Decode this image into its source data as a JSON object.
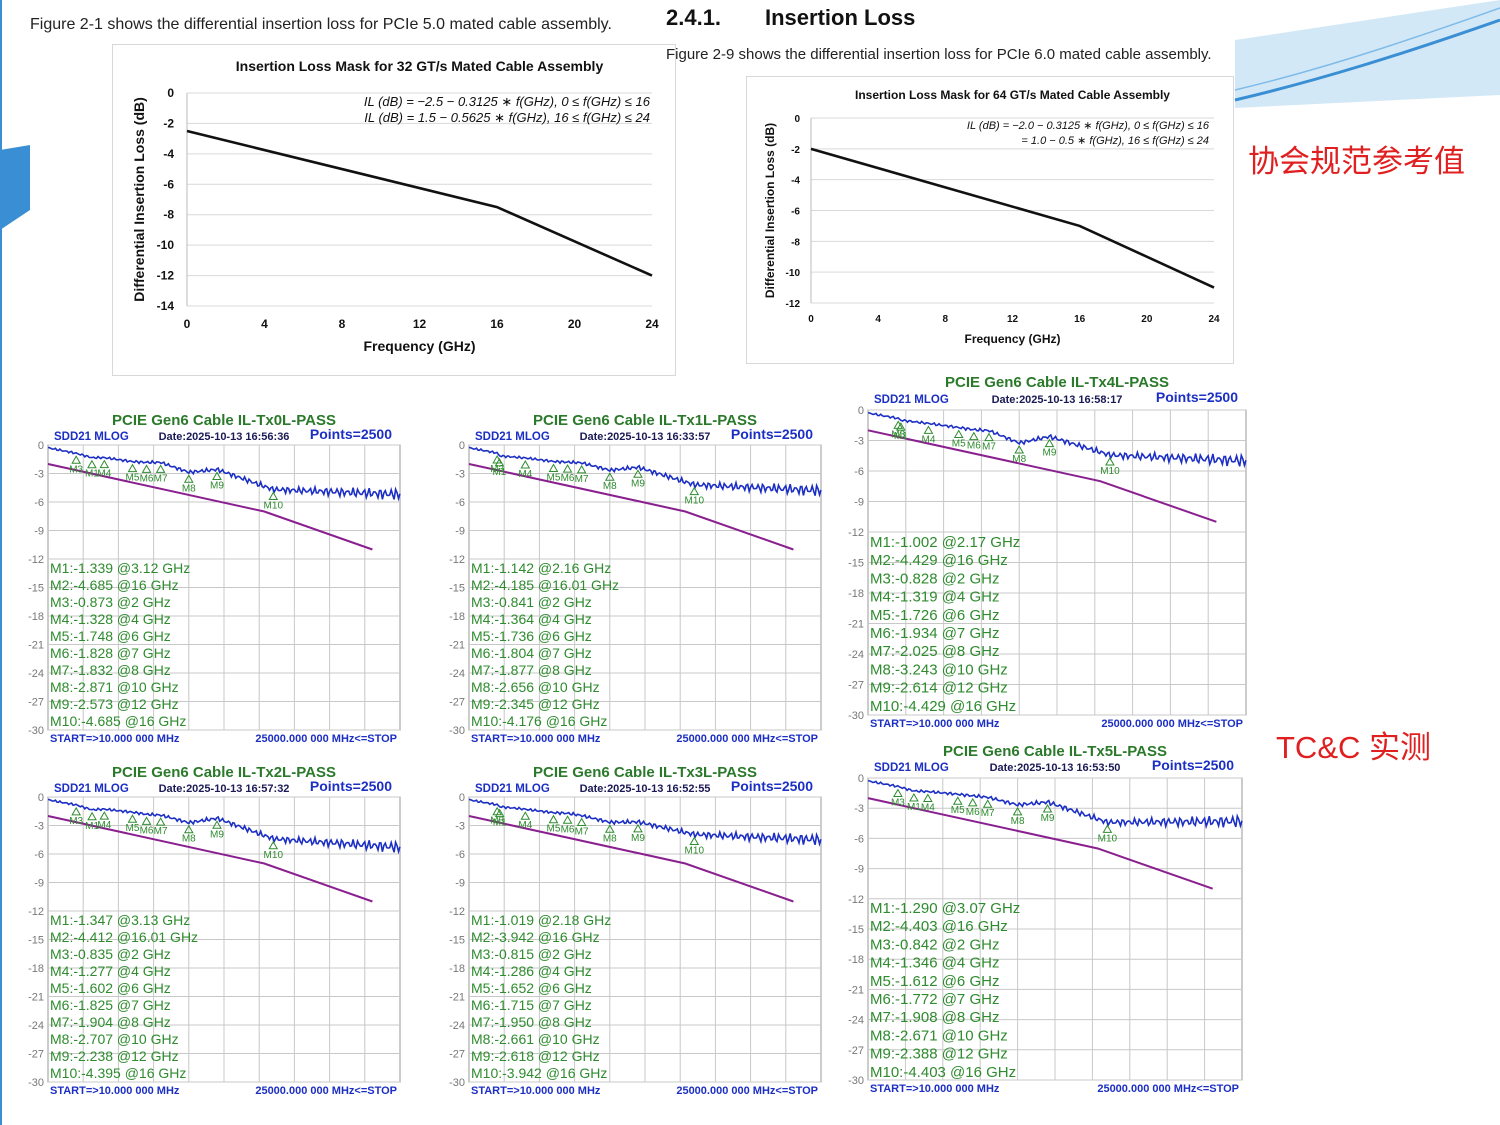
{
  "colors": {
    "accent_blue": "#3a8fd4",
    "light_blue": "#d3e8f7",
    "note_red": "#e02020",
    "mask_purple": "#8a1f8f",
    "measured_blue": "#1c2fc4",
    "marker_green": "#2e8b2e",
    "title_green": "#2b7a2b",
    "label_blue": "#1c2fc4"
  },
  "left_caption": "Figure 2-1 shows the differential insertion loss for PCIe 5.0 mated cable assembly.",
  "section": {
    "number": "2.4.1.",
    "title": "Insertion Loss"
  },
  "right_caption": "Figure 2-9 shows the differential insertion loss for PCIe 6.0 mated cable assembly.",
  "notes": {
    "spec_reference": "协会规范参考值",
    "measured": "TC&C 实测"
  },
  "chart_data": [
    {
      "type": "line",
      "title": "Insertion Loss Mask for 32 GT/s Mated Cable Assembly",
      "xlabel": "Frequency (GHz)",
      "ylabel": "Differential Insertion Loss (dB)",
      "xlim": [
        0,
        24
      ],
      "ylim": [
        -14,
        0
      ],
      "xticks": [
        "0",
        "4",
        "8",
        "12",
        "16",
        "20",
        "24"
      ],
      "yticks": [
        "0",
        "-2",
        "-4",
        "-6",
        "-8",
        "-10",
        "-12",
        "-14"
      ],
      "equations": [
        "IL (dB) = −2.5  − 0.3125 ∗ f(GHz), 0 ≤ f(GHz) ≤ 16",
        "IL (dB) =   1.5  − 0.5625 ∗ f(GHz), 16 ≤ f(GHz) ≤ 24"
      ],
      "series": [
        {
          "x": [
            0,
            16,
            24
          ],
          "y": [
            -2.5,
            -7.5,
            -12
          ]
        }
      ],
      "grid": "horizontal"
    },
    {
      "type": "line",
      "title": "Insertion Loss Mask for 64 GT/s Mated Cable Assembly",
      "xlabel": "Frequency (GHz)",
      "ylabel": "Differential Insertion Loss (dB)",
      "xlim": [
        0,
        24
      ],
      "ylim": [
        -12,
        0
      ],
      "xticks": [
        "0",
        "4",
        "8",
        "12",
        "16",
        "20",
        "24"
      ],
      "yticks": [
        "0",
        "-2",
        "-4",
        "-6",
        "-8",
        "-10",
        "-12"
      ],
      "equations": [
        "IL (dB) = −2.0 − 0.3125 ∗ f(GHz), 0 ≤ f(GHz) ≤ 16",
        "= 1.0 − 0.5 ∗ f(GHz), 16 ≤ f(GHz) ≤ 24"
      ],
      "series": [
        {
          "x": [
            0,
            16,
            24
          ],
          "y": [
            -2,
            -7,
            -11
          ]
        }
      ],
      "grid": "horizontal"
    },
    {
      "type": "line",
      "title": "PCIE Gen6 Cable IL-Tx0L-PASS",
      "header": "SDD21 MLOG",
      "date": "Date:2025-10-13 16:56:36",
      "points": "Points=2500",
      "start": "START=>10.000 000 MHz",
      "stop": "25000.000 000 MHz<=STOP",
      "ylim": [
        -30,
        0
      ],
      "yticks": [
        "0",
        "-3",
        "-6",
        "-9",
        "-12",
        "-15",
        "-18",
        "-21",
        "-24",
        "-27",
        "-30"
      ],
      "marker_lines": [
        "M1:-1.339 @3.12 GHz",
        "M2:-4.685 @16 GHz",
        "M3:-0.873 @2 GHz",
        "M4:-1.328 @4 GHz",
        "M5:-1.748 @6 GHz",
        "M6:-1.828 @7 GHz",
        "M7:-1.832 @8 GHz",
        "M8:-2.871 @10 GHz",
        "M9:-2.573 @12 GHz",
        "M10:-4.685 @16 GHz"
      ],
      "markers": [
        {
          "label": "M1",
          "f": 3.12,
          "db": -1.339
        },
        {
          "label": "M2",
          "f": 16,
          "db": -4.685
        },
        {
          "label": "M3",
          "f": 2,
          "db": -0.873
        },
        {
          "label": "M4",
          "f": 4,
          "db": -1.328
        },
        {
          "label": "M5",
          "f": 6,
          "db": -1.748
        },
        {
          "label": "M6",
          "f": 7,
          "db": -1.828
        },
        {
          "label": "M7",
          "f": 8,
          "db": -1.832
        },
        {
          "label": "M8",
          "f": 10,
          "db": -2.871
        },
        {
          "label": "M9",
          "f": 12,
          "db": -2.573
        },
        {
          "label": "M10",
          "f": 16,
          "db": -4.685
        }
      ],
      "mask": {
        "x": [
          0,
          16,
          24
        ],
        "y": [
          -2,
          -7,
          -11
        ]
      },
      "trace_end_db": -5.2
    },
    {
      "type": "line",
      "title": "PCIE Gen6 Cable IL-Tx1L-PASS",
      "header": "SDD21 MLOG",
      "date": "Date:2025-10-13 16:33:57",
      "points": "Points=2500",
      "start": "START=>10.000 000 MHz",
      "stop": "25000.000 000 MHz<=STOP",
      "ylim": [
        -30,
        0
      ],
      "yticks": [
        "0",
        "-3",
        "-6",
        "-9",
        "-12",
        "-15",
        "-18",
        "-21",
        "-24",
        "-27",
        "-30"
      ],
      "marker_lines": [
        "M1:-1.142 @2.16 GHz",
        "M2:-4.185 @16.01 GHz",
        "M3:-0.841 @2 GHz",
        "M4:-1.364 @4 GHz",
        "M5:-1.736 @6 GHz",
        "M6:-1.804 @7 GHz",
        "M7:-1.877 @8 GHz",
        "M8:-2.656 @10 GHz",
        "M9:-2.345 @12 GHz",
        "M10:-4.176 @16 GHz"
      ],
      "markers": [
        {
          "label": "M1",
          "f": 2.16,
          "db": -1.142
        },
        {
          "label": "M2",
          "f": 16.01,
          "db": -4.185
        },
        {
          "label": "M3",
          "f": 2,
          "db": -0.841
        },
        {
          "label": "M4",
          "f": 4,
          "db": -1.364
        },
        {
          "label": "M5",
          "f": 6,
          "db": -1.736
        },
        {
          "label": "M6",
          "f": 7,
          "db": -1.804
        },
        {
          "label": "M7",
          "f": 8,
          "db": -1.877
        },
        {
          "label": "M8",
          "f": 10,
          "db": -2.656
        },
        {
          "label": "M9",
          "f": 12,
          "db": -2.345
        },
        {
          "label": "M10",
          "f": 16,
          "db": -4.176
        }
      ],
      "mask": {
        "x": [
          0,
          16,
          24
        ],
        "y": [
          -2,
          -7,
          -11
        ]
      },
      "trace_end_db": -4.8
    },
    {
      "type": "line",
      "title": "PCIE Gen6 Cable IL-Tx4L-PASS",
      "header": "SDD21 MLOG",
      "date": "Date:2025-10-13 16:58:17",
      "points": "Points=2500",
      "start": "START=>10.000 000 MHz",
      "stop": "25000.000 000 MHz<=STOP",
      "ylim": [
        -30,
        0
      ],
      "yticks": [
        "0",
        "-3",
        "-6",
        "-9",
        "-12",
        "-15",
        "-18",
        "-21",
        "-24",
        "-27",
        "-30"
      ],
      "marker_lines": [
        "M1:-1.002 @2.17 GHz",
        "M2:-4.429 @16 GHz",
        "M3:-0.828 @2 GHz",
        "M4:-1.319 @4 GHz",
        "M5:-1.726 @6 GHz",
        "M6:-1.934 @7 GHz",
        "M7:-2.025 @8 GHz",
        "M8:-3.243 @10 GHz",
        "M9:-2.614 @12 GHz",
        "M10:-4.429 @16 GHz"
      ],
      "markers": [
        {
          "label": "M1",
          "f": 2.17,
          "db": -1.002
        },
        {
          "label": "M2",
          "f": 16,
          "db": -4.429
        },
        {
          "label": "M3",
          "f": 2,
          "db": -0.828
        },
        {
          "label": "M4",
          "f": 4,
          "db": -1.319
        },
        {
          "label": "M5",
          "f": 6,
          "db": -1.726
        },
        {
          "label": "M6",
          "f": 7,
          "db": -1.934
        },
        {
          "label": "M7",
          "f": 8,
          "db": -2.025
        },
        {
          "label": "M8",
          "f": 10,
          "db": -3.243
        },
        {
          "label": "M9",
          "f": 12,
          "db": -2.614
        },
        {
          "label": "M10",
          "f": 16,
          "db": -4.429
        }
      ],
      "mask": {
        "x": [
          0,
          16,
          24
        ],
        "y": [
          -2,
          -7,
          -11
        ]
      },
      "trace_end_db": -5.0
    },
    {
      "type": "line",
      "title": "PCIE Gen6 Cable IL-Tx2L-PASS",
      "header": "SDD21 MLOG",
      "date": "Date:2025-10-13 16:57:32",
      "points": "Points=2500",
      "start": "START=>10.000 000 MHz",
      "stop": "25000.000 000 MHz<=STOP",
      "ylim": [
        -30,
        0
      ],
      "yticks": [
        "0",
        "-3",
        "-6",
        "-9",
        "-12",
        "-15",
        "-18",
        "-21",
        "-24",
        "-27",
        "-30"
      ],
      "marker_lines": [
        "M1:-1.347 @3.13 GHz",
        "M2:-4.412 @16.01 GHz",
        "M3:-0.835 @2 GHz",
        "M4:-1.277 @4 GHz",
        "M5:-1.602 @6 GHz",
        "M6:-1.825 @7 GHz",
        "M7:-1.904 @8 GHz",
        "M8:-2.707 @10 GHz",
        "M9:-2.238 @12 GHz",
        "M10:-4.395 @16 GHz"
      ],
      "markers": [
        {
          "label": "M1",
          "f": 3.13,
          "db": -1.347
        },
        {
          "label": "M2",
          "f": 16.01,
          "db": -4.412
        },
        {
          "label": "M3",
          "f": 2,
          "db": -0.835
        },
        {
          "label": "M4",
          "f": 4,
          "db": -1.277
        },
        {
          "label": "M5",
          "f": 6,
          "db": -1.602
        },
        {
          "label": "M6",
          "f": 7,
          "db": -1.825
        },
        {
          "label": "M7",
          "f": 8,
          "db": -1.904
        },
        {
          "label": "M8",
          "f": 10,
          "db": -2.707
        },
        {
          "label": "M9",
          "f": 12,
          "db": -2.238
        },
        {
          "label": "M10",
          "f": 16,
          "db": -4.395
        }
      ],
      "mask": {
        "x": [
          0,
          16,
          24
        ],
        "y": [
          -2,
          -7,
          -11
        ]
      },
      "trace_end_db": -5.3
    },
    {
      "type": "line",
      "title": "PCIE Gen6 Cable IL-Tx3L-PASS",
      "header": "SDD21 MLOG",
      "date": "Date:2025-10-13 16:52:55",
      "points": "Points=2500",
      "start": "START=>10.000 000 MHz",
      "stop": "25000.000 000 MHz<=STOP",
      "ylim": [
        -30,
        0
      ],
      "yticks": [
        "0",
        "-3",
        "-6",
        "-9",
        "-12",
        "-15",
        "-18",
        "-21",
        "-24",
        "-27",
        "-30"
      ],
      "marker_lines": [
        "M1:-1.019 @2.18 GHz",
        "M2:-3.942 @16 GHz",
        "M3:-0.815 @2 GHz",
        "M4:-1.286 @4 GHz",
        "M5:-1.652 @6 GHz",
        "M6:-1.715 @7 GHz",
        "M7:-1.950 @8 GHz",
        "M8:-2.661 @10 GHz",
        "M9:-2.618 @12 GHz",
        "M10:-3.942 @16 GHz"
      ],
      "markers": [
        {
          "label": "M1",
          "f": 2.18,
          "db": -1.019
        },
        {
          "label": "M2",
          "f": 16,
          "db": -3.942
        },
        {
          "label": "M3",
          "f": 2,
          "db": -0.815
        },
        {
          "label": "M4",
          "f": 4,
          "db": -1.286
        },
        {
          "label": "M5",
          "f": 6,
          "db": -1.652
        },
        {
          "label": "M6",
          "f": 7,
          "db": -1.715
        },
        {
          "label": "M7",
          "f": 8,
          "db": -1.95
        },
        {
          "label": "M8",
          "f": 10,
          "db": -2.661
        },
        {
          "label": "M9",
          "f": 12,
          "db": -2.618
        },
        {
          "label": "M10",
          "f": 16,
          "db": -3.942
        }
      ],
      "mask": {
        "x": [
          0,
          16,
          24
        ],
        "y": [
          -2,
          -7,
          -11
        ]
      },
      "trace_end_db": -4.5
    },
    {
      "type": "line",
      "title": "PCIE Gen6 Cable IL-Tx5L-PASS",
      "header": "SDD21 MLOG",
      "date": "Date:2025-10-13 16:53:50",
      "points": "Points=2500",
      "start": "START=>10.000 000 MHz",
      "stop": "25000.000 000 MHz<=STOP",
      "ylim": [
        -30,
        0
      ],
      "yticks": [
        "0",
        "-3",
        "-6",
        "-9",
        "-12",
        "-15",
        "-18",
        "-21",
        "-24",
        "-27",
        "-30"
      ],
      "marker_lines": [
        "M1:-1.290 @3.07 GHz",
        "M2:-4.403 @16 GHz",
        "M3:-0.842 @2 GHz",
        "M4:-1.346 @4 GHz",
        "M5:-1.612 @6 GHz",
        "M6:-1.772 @7 GHz",
        "M7:-1.908 @8 GHz",
        "M8:-2.671 @10 GHz",
        "M9:-2.388 @12 GHz",
        "M10:-4.403 @16 GHz"
      ],
      "markers": [
        {
          "label": "M1",
          "f": 3.07,
          "db": -1.29
        },
        {
          "label": "M2",
          "f": 16,
          "db": -4.403
        },
        {
          "label": "M3",
          "f": 2,
          "db": -0.842
        },
        {
          "label": "M4",
          "f": 4,
          "db": -1.346
        },
        {
          "label": "M5",
          "f": 6,
          "db": -1.612
        },
        {
          "label": "M6",
          "f": 7,
          "db": -1.772
        },
        {
          "label": "M7",
          "f": 8,
          "db": -1.908
        },
        {
          "label": "M8",
          "f": 10,
          "db": -2.671
        },
        {
          "label": "M9",
          "f": 12,
          "db": -2.388
        },
        {
          "label": "M10",
          "f": 16,
          "db": -4.403
        }
      ],
      "mask": {
        "x": [
          0,
          16,
          24
        ],
        "y": [
          -2,
          -7,
          -11
        ]
      },
      "trace_end_db": -4.3
    }
  ]
}
